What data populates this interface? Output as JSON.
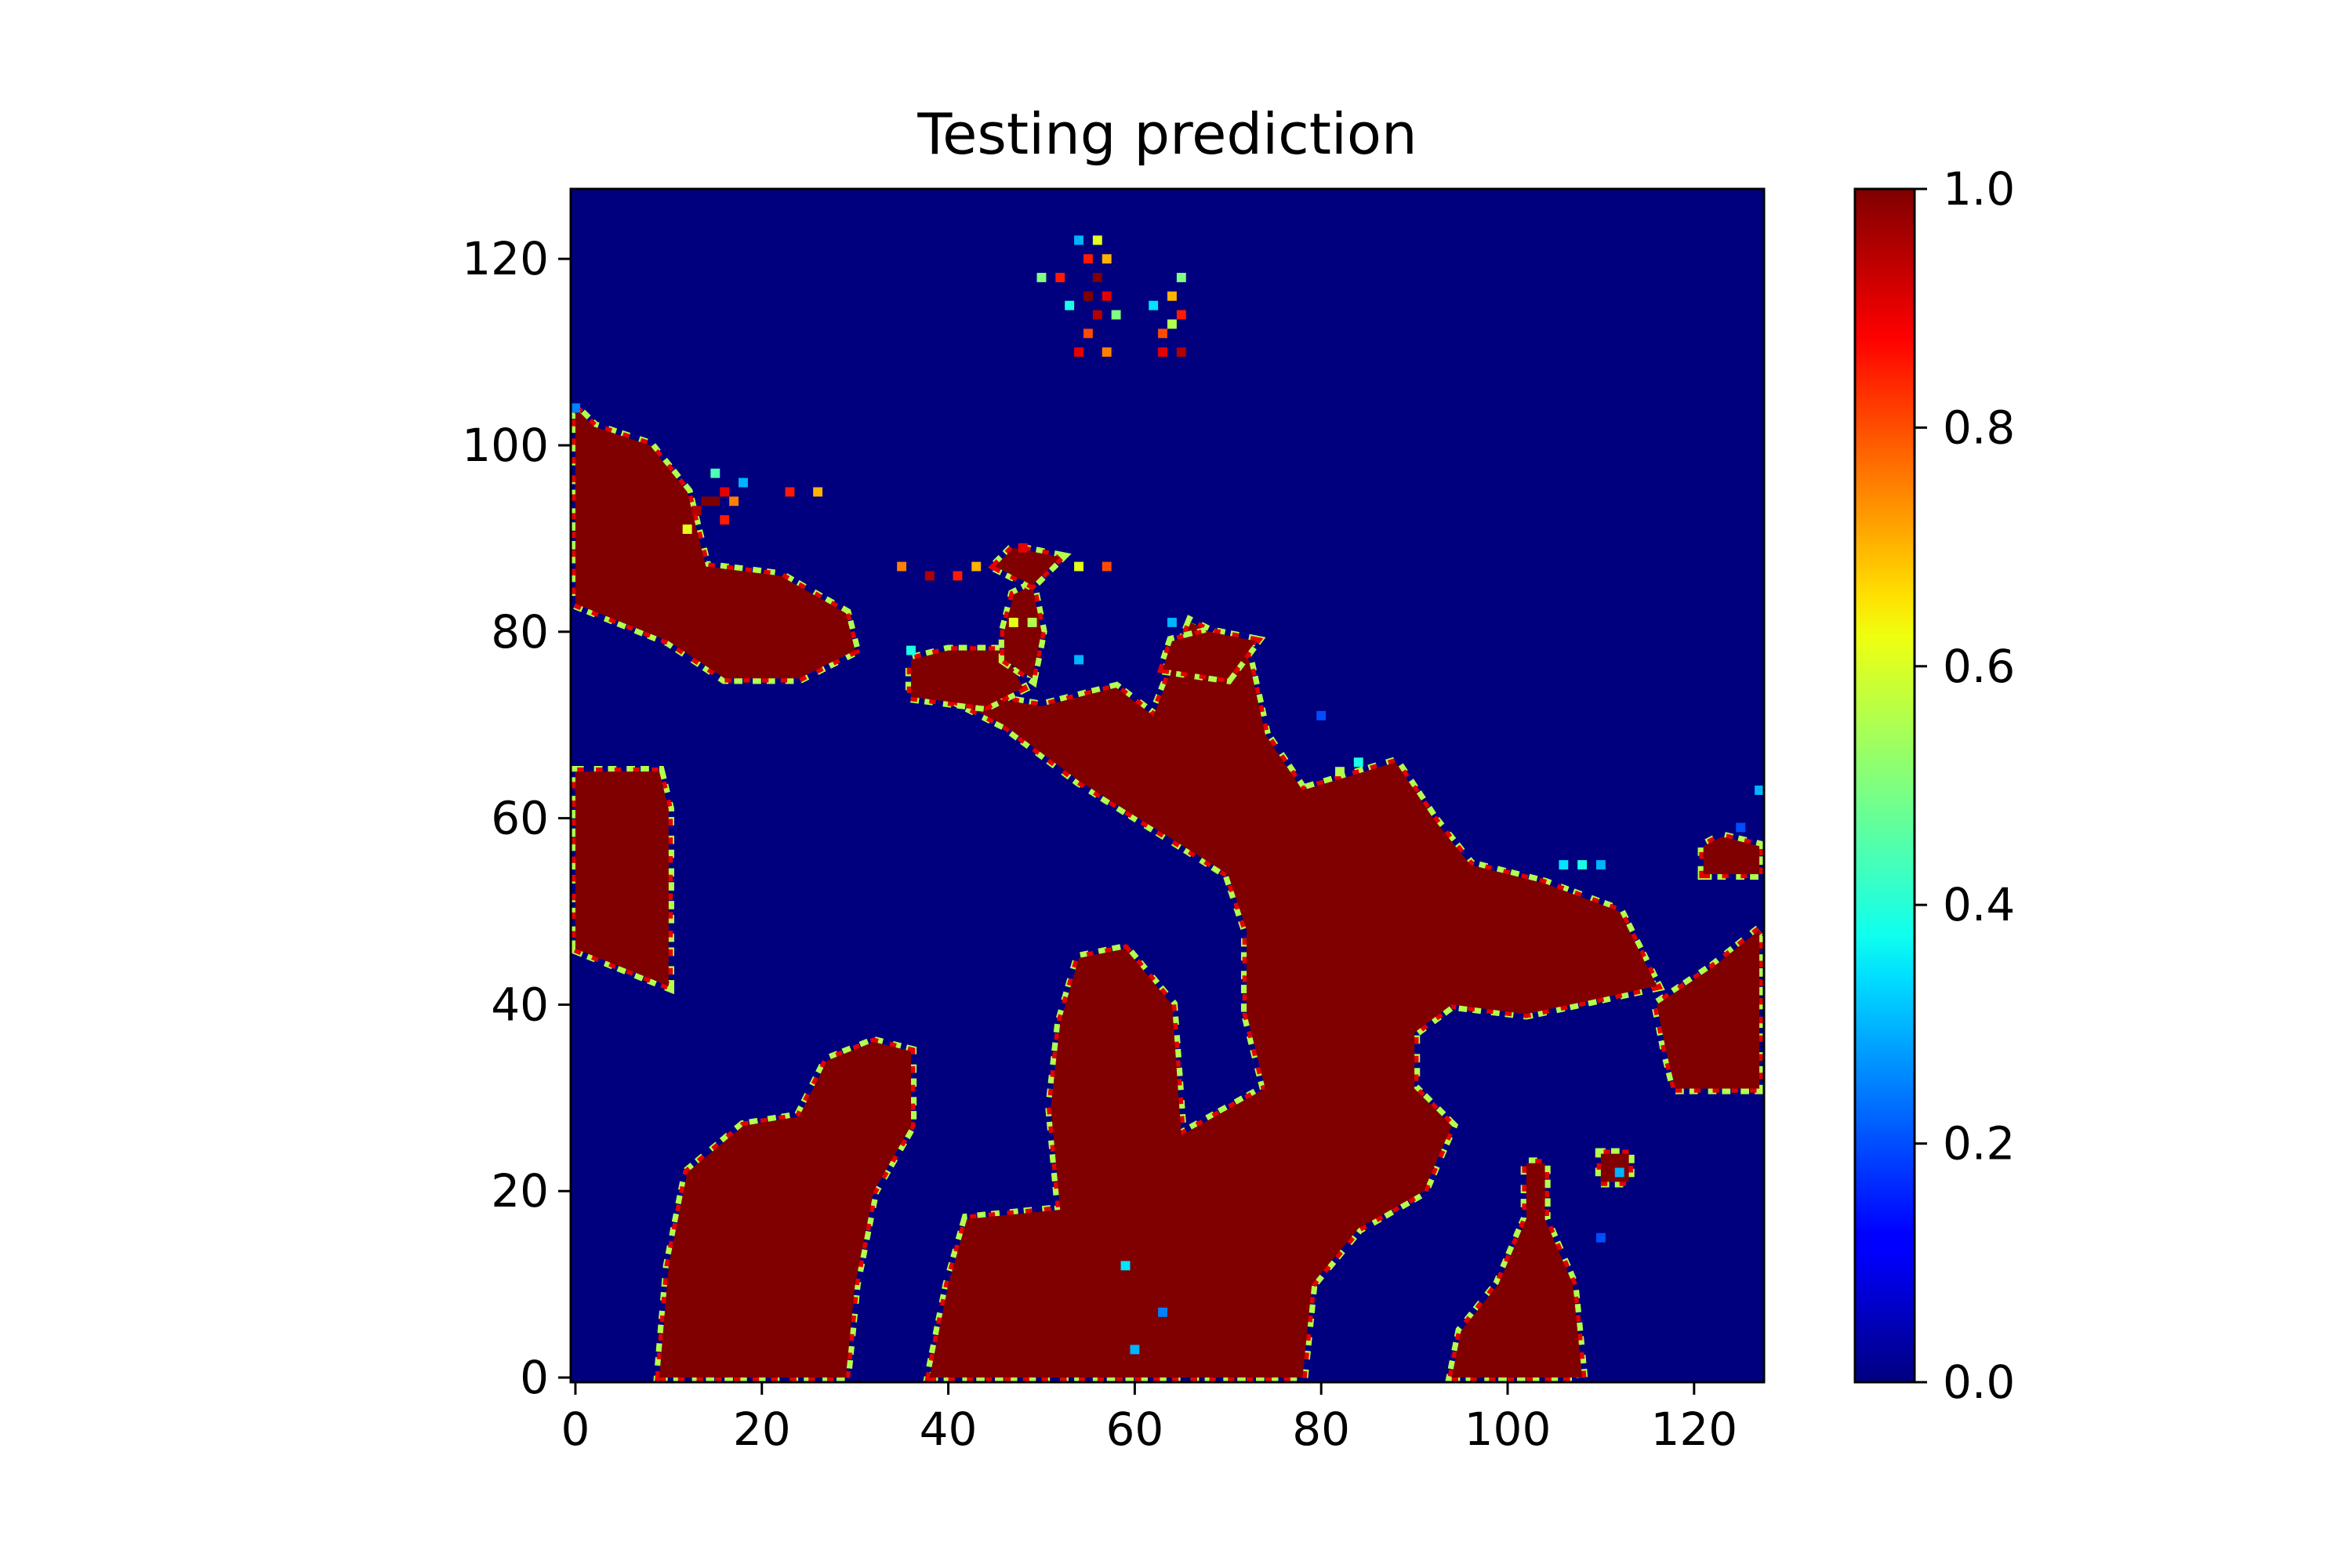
{
  "chart_data": {
    "type": "heatmap",
    "title": "Testing prediction",
    "xlabel": "",
    "ylabel": "",
    "shape": [
      128,
      128
    ],
    "xlim": [
      -0.5,
      127.5
    ],
    "ylim": [
      127.5,
      -0.5
    ],
    "y_axis_inverted": true,
    "x_ticks": [
      0,
      20,
      40,
      60,
      80,
      100,
      120
    ],
    "x_tick_labels": [
      "0",
      "20",
      "40",
      "60",
      "80",
      "100",
      "120"
    ],
    "y_ticks": [
      0,
      20,
      40,
      60,
      80,
      100,
      120
    ],
    "y_tick_labels": [
      "0",
      "20",
      "40",
      "60",
      "80",
      "100",
      "120"
    ],
    "colormap": "jet",
    "colorbar": {
      "vmin": 0.0,
      "vmax": 1.0,
      "ticks": [
        0.0,
        0.2,
        0.4,
        0.6,
        0.8,
        1.0
      ],
      "tick_labels": [
        "0.0",
        "0.2",
        "0.4",
        "0.6",
        "0.8",
        "1.0"
      ],
      "placement": "right"
    },
    "background_value": 0.0,
    "high_value": 1.0,
    "regions": [
      {
        "poly": [
          [
            9,
            0
          ],
          [
            29,
            0
          ],
          [
            30,
            10
          ],
          [
            32,
            20
          ],
          [
            36,
            27
          ],
          [
            36,
            35
          ],
          [
            32,
            36
          ],
          [
            27,
            34
          ],
          [
            24,
            28
          ],
          [
            18,
            27
          ],
          [
            12,
            22
          ],
          [
            10,
            12
          ]
        ]
      },
      {
        "poly": [
          [
            38,
            0
          ],
          [
            78,
            0
          ],
          [
            79,
            10
          ],
          [
            84,
            16
          ],
          [
            91,
            20
          ],
          [
            94,
            27
          ],
          [
            90,
            31
          ],
          [
            90,
            37
          ],
          [
            94,
            40
          ],
          [
            102,
            39
          ],
          [
            116,
            42
          ],
          [
            112,
            50
          ],
          [
            104,
            53
          ],
          [
            96,
            55
          ],
          [
            92,
            60
          ],
          [
            88,
            66
          ],
          [
            78,
            63
          ],
          [
            74,
            69
          ],
          [
            72,
            78
          ],
          [
            66,
            81
          ],
          [
            62,
            71
          ],
          [
            58,
            74
          ],
          [
            50,
            72
          ],
          [
            44,
            73
          ],
          [
            39,
            75
          ],
          [
            40,
            73
          ],
          [
            46,
            70
          ],
          [
            54,
            64
          ],
          [
            62,
            59
          ],
          [
            70,
            54
          ],
          [
            72,
            48
          ],
          [
            72,
            39
          ],
          [
            74,
            31
          ],
          [
            65,
            26
          ],
          [
            64,
            40
          ],
          [
            59,
            46
          ],
          [
            54,
            45
          ],
          [
            52,
            38
          ],
          [
            51,
            29
          ],
          [
            52,
            18
          ],
          [
            42,
            17
          ],
          [
            40,
            10
          ]
        ]
      },
      {
        "poly": [
          [
            94,
            0
          ],
          [
            108,
            0
          ],
          [
            107,
            10
          ],
          [
            104,
            17
          ],
          [
            104,
            23
          ],
          [
            102,
            23
          ],
          [
            102,
            17
          ],
          [
            99,
            10
          ],
          [
            95,
            5
          ]
        ]
      },
      {
        "poly": [
          [
            110,
            21
          ],
          [
            113,
            21
          ],
          [
            113,
            24
          ],
          [
            110,
            24
          ]
        ]
      },
      {
        "poly": [
          [
            118,
            31
          ],
          [
            127,
            31
          ],
          [
            127,
            48
          ],
          [
            122,
            44
          ],
          [
            116,
            40
          ],
          [
            117,
            35
          ]
        ]
      },
      {
        "poly": [
          [
            121,
            54
          ],
          [
            127,
            54
          ],
          [
            127,
            57
          ],
          [
            123,
            58
          ],
          [
            121,
            57
          ]
        ]
      },
      {
        "poly": [
          [
            0,
            46
          ],
          [
            10,
            42
          ],
          [
            10,
            61
          ],
          [
            9,
            65
          ],
          [
            0,
            65
          ]
        ]
      },
      {
        "poly": [
          [
            0,
            83
          ],
          [
            10,
            79
          ],
          [
            16,
            75
          ],
          [
            24,
            75
          ],
          [
            30,
            78
          ],
          [
            29,
            82
          ],
          [
            22,
            86
          ],
          [
            14,
            87
          ],
          [
            12,
            95
          ],
          [
            8,
            100
          ],
          [
            2,
            102
          ],
          [
            0,
            104
          ]
        ]
      },
      {
        "poly": [
          [
            36,
            73
          ],
          [
            44,
            72
          ],
          [
            48,
            74
          ],
          [
            46,
            78
          ],
          [
            40,
            78
          ],
          [
            36,
            77
          ]
        ]
      },
      {
        "poly": [
          [
            46,
            77
          ],
          [
            49,
            75
          ],
          [
            50,
            80
          ],
          [
            49,
            85
          ],
          [
            47,
            84
          ],
          [
            46,
            80
          ]
        ]
      },
      {
        "poly": [
          [
            45,
            87
          ],
          [
            49,
            85
          ],
          [
            52,
            88
          ],
          [
            47,
            89
          ]
        ]
      },
      {
        "poly": [
          [
            63,
            76
          ],
          [
            70,
            75
          ],
          [
            73,
            79
          ],
          [
            68,
            80
          ],
          [
            64,
            79
          ]
        ]
      }
    ],
    "spots": [
      {
        "x": 35,
        "y": 88,
        "v": 0.75
      },
      {
        "x": 38,
        "y": 87,
        "v": 0.95
      },
      {
        "x": 41,
        "y": 87,
        "v": 0.85
      },
      {
        "x": 43,
        "y": 88,
        "v": 0.7
      },
      {
        "x": 54,
        "y": 88,
        "v": 0.6
      },
      {
        "x": 57,
        "y": 88,
        "v": 0.8
      },
      {
        "x": 48,
        "y": 90,
        "v": 0.9
      },
      {
        "x": 47,
        "y": 82,
        "v": 0.6
      },
      {
        "x": 49,
        "y": 82,
        "v": 0.55
      },
      {
        "x": 36,
        "y": 79,
        "v": 0.4
      },
      {
        "x": 54,
        "y": 78,
        "v": 0.3
      },
      {
        "x": 13,
        "y": 94,
        "v": 0.95
      },
      {
        "x": 14,
        "y": 95,
        "v": 1.0
      },
      {
        "x": 15,
        "y": 95,
        "v": 1.0
      },
      {
        "x": 16,
        "y": 96,
        "v": 0.9
      },
      {
        "x": 17,
        "y": 95,
        "v": 0.75
      },
      {
        "x": 16,
        "y": 93,
        "v": 0.85
      },
      {
        "x": 15,
        "y": 98,
        "v": 0.45
      },
      {
        "x": 18,
        "y": 97,
        "v": 0.3
      },
      {
        "x": 23,
        "y": 96,
        "v": 0.85
      },
      {
        "x": 26,
        "y": 96,
        "v": 0.7
      },
      {
        "x": 12,
        "y": 92,
        "v": 0.6
      },
      {
        "x": 54,
        "y": 111,
        "v": 0.9
      },
      {
        "x": 57,
        "y": 111,
        "v": 0.75
      },
      {
        "x": 55,
        "y": 113,
        "v": 0.8
      },
      {
        "x": 56,
        "y": 115,
        "v": 0.95
      },
      {
        "x": 55,
        "y": 117,
        "v": 1.0
      },
      {
        "x": 57,
        "y": 117,
        "v": 0.9
      },
      {
        "x": 56,
        "y": 119,
        "v": 1.0
      },
      {
        "x": 55,
        "y": 121,
        "v": 0.85
      },
      {
        "x": 57,
        "y": 121,
        "v": 0.7
      },
      {
        "x": 56,
        "y": 123,
        "v": 0.6
      },
      {
        "x": 50,
        "y": 119,
        "v": 0.5
      },
      {
        "x": 52,
        "y": 119,
        "v": 0.85
      },
      {
        "x": 53,
        "y": 116,
        "v": 0.4
      },
      {
        "x": 58,
        "y": 115,
        "v": 0.5
      },
      {
        "x": 54,
        "y": 123,
        "v": 0.3
      },
      {
        "x": 63,
        "y": 111,
        "v": 0.9
      },
      {
        "x": 65,
        "y": 111,
        "v": 0.95
      },
      {
        "x": 63,
        "y": 113,
        "v": 0.8
      },
      {
        "x": 64,
        "y": 114,
        "v": 0.55
      },
      {
        "x": 65,
        "y": 115,
        "v": 0.85
      },
      {
        "x": 64,
        "y": 117,
        "v": 0.7
      },
      {
        "x": 65,
        "y": 119,
        "v": 0.5
      },
      {
        "x": 62,
        "y": 116,
        "v": 0.35
      },
      {
        "x": 106,
        "y": 56,
        "v": 0.35
      },
      {
        "x": 108,
        "y": 56,
        "v": 0.4
      },
      {
        "x": 110,
        "y": 56,
        "v": 0.3
      },
      {
        "x": 112,
        "y": 23,
        "v": 0.3
      },
      {
        "x": 110,
        "y": 16,
        "v": 0.2
      },
      {
        "x": 125,
        "y": 60,
        "v": 0.2
      },
      {
        "x": 127,
        "y": 64,
        "v": 0.3
      },
      {
        "x": 60,
        "y": 4,
        "v": 0.3
      },
      {
        "x": 63,
        "y": 8,
        "v": 0.25
      },
      {
        "x": 59,
        "y": 13,
        "v": 0.35
      },
      {
        "x": 0,
        "y": 105,
        "v": 0.25
      },
      {
        "x": 80,
        "y": 72,
        "v": 0.2
      },
      {
        "x": 64,
        "y": 82,
        "v": 0.3
      },
      {
        "x": 84,
        "y": 67,
        "v": 0.4
      },
      {
        "x": 82,
        "y": 66,
        "v": 0.55
      }
    ]
  }
}
